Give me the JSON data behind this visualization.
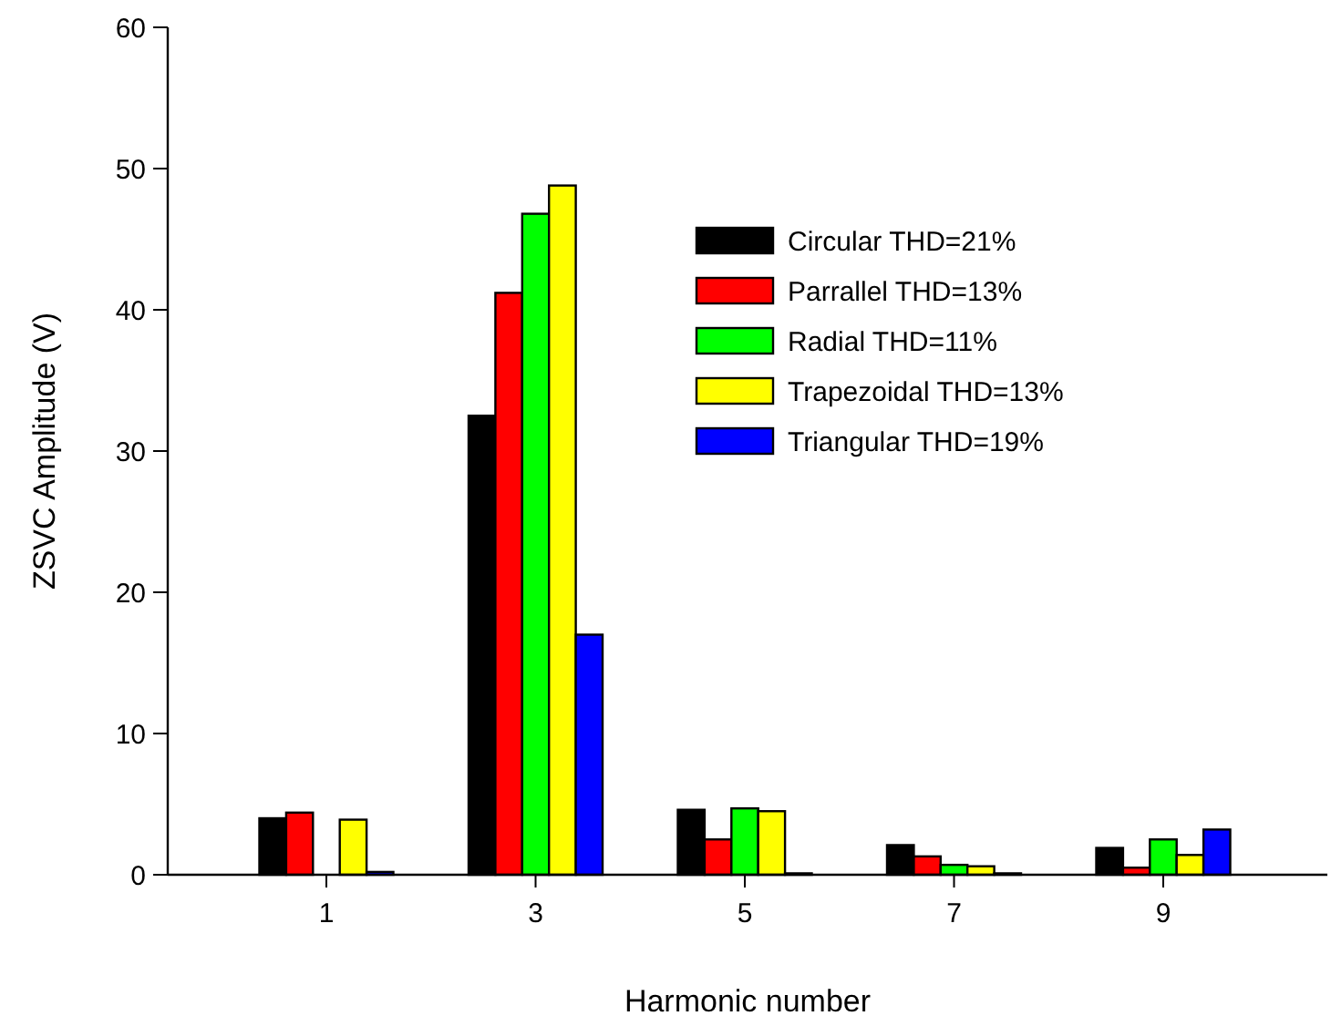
{
  "chart_data": {
    "type": "bar",
    "xlabel": "Harmonic number",
    "ylabel": "ZSVC Amplitude (V)",
    "categories": [
      "1",
      "3",
      "5",
      "7",
      "9"
    ],
    "series": [
      {
        "name": "Circular THD=21%",
        "color": "#000000",
        "values": [
          4.0,
          32.5,
          4.6,
          2.1,
          1.9
        ]
      },
      {
        "name": "Parrallel THD=13%",
        "color": "#ff0000",
        "values": [
          4.4,
          41.2,
          2.5,
          1.3,
          0.5
        ]
      },
      {
        "name": "Radial THD=11%",
        "color": "#00ff00",
        "values": [
          0,
          46.8,
          4.7,
          0.7,
          2.5
        ]
      },
      {
        "name": "Trapezoidal THD=13%",
        "color": "#ffff00",
        "values": [
          3.9,
          48.8,
          4.5,
          0.6,
          1.4
        ]
      },
      {
        "name": "Triangular THD=19%",
        "color": "#0000ff",
        "values": [
          0.2,
          17.0,
          0.1,
          0.1,
          3.2
        ]
      }
    ],
    "ylim": [
      0,
      60
    ],
    "yticks": [
      0,
      10,
      20,
      30,
      40,
      50,
      60
    ],
    "legend": "top right"
  }
}
